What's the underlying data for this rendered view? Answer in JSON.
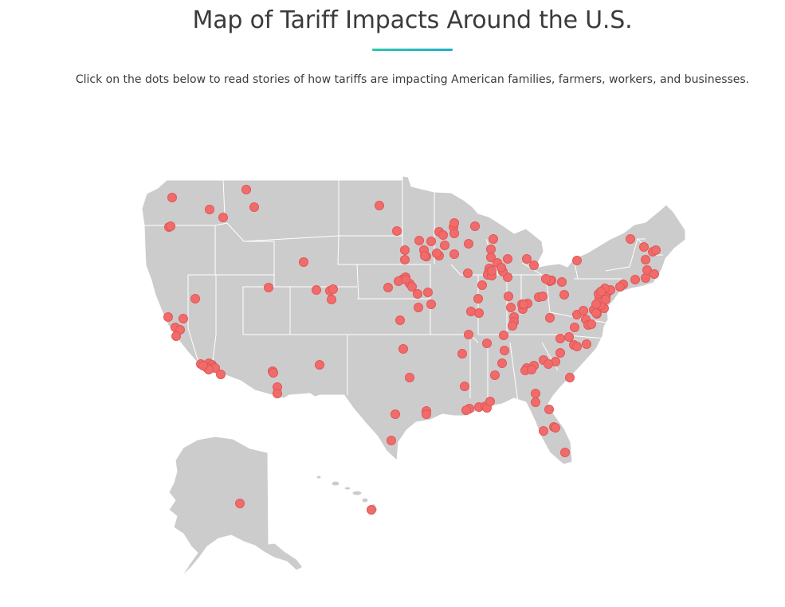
{
  "header": {
    "title": "Map of Tariff Impacts Around the U.S.",
    "intro": "Click on the dots below to read stories of how tariffs are impacting American families, farmers, workers, and businesses."
  },
  "colors": {
    "land": "#cccccc",
    "border": "#ffffff",
    "pin": "#f26b6b",
    "pin_stroke": "#e05757",
    "underline_start": "#2cc7a8",
    "underline_end": "#21aecb"
  },
  "map": {
    "pin_count": 181,
    "pin_icon": "map-pin-dot"
  }
}
